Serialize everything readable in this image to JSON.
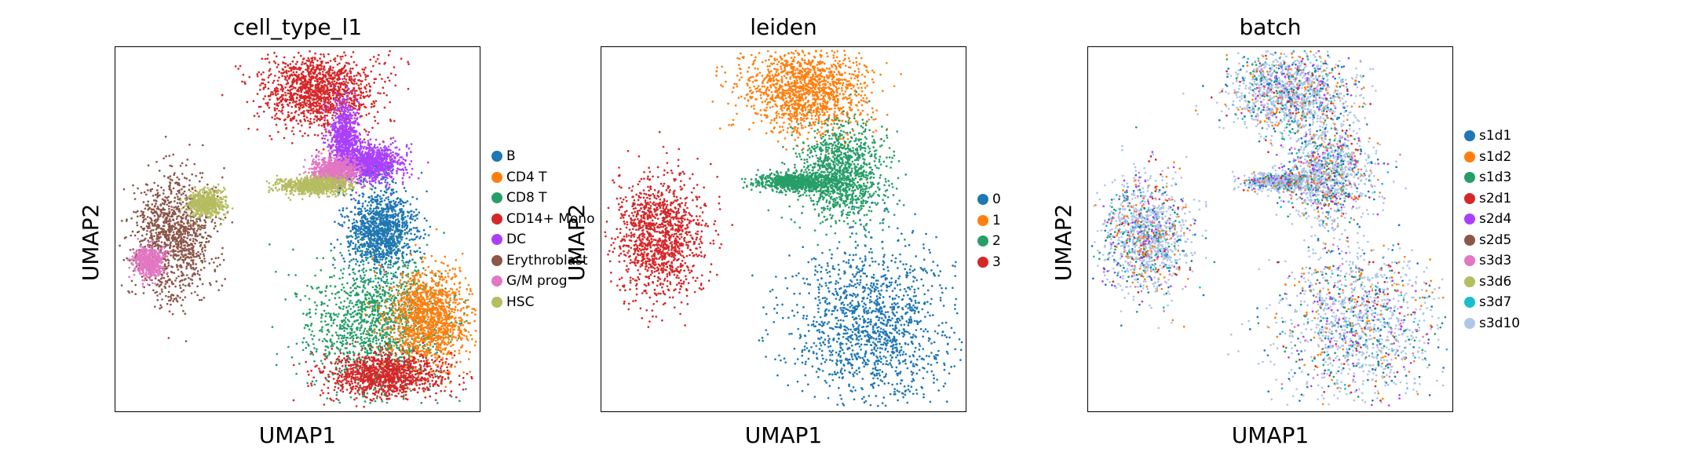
{
  "chart_data": [
    {
      "type": "scatter",
      "title": "cell_type_l1",
      "xlabel": "UMAP1",
      "ylabel": "UMAP2",
      "xticks": [],
      "yticks": [],
      "grid": false,
      "legend_placement": "right",
      "legend": [
        {
          "name": "B",
          "color": "#1f77b4"
        },
        {
          "name": "CD4 T",
          "color": "#ff7f0e"
        },
        {
          "name": "CD8 T",
          "color": "#279e68"
        },
        {
          "name": "CD14+ Mono",
          "color": "#d62728"
        },
        {
          "name": "DC",
          "color": "#aa40fc"
        },
        {
          "name": "Erythroblast",
          "color": "#8c564b"
        },
        {
          "name": "G/M prog",
          "color": "#e377c2"
        },
        {
          "name": "HSC",
          "color": "#b5bd61"
        }
      ],
      "clusters": [
        {
          "category": "CD14+ Mono",
          "center": [
            0.56,
            0.88
          ],
          "spread": [
            0.08,
            0.055
          ],
          "density": 1.0
        },
        {
          "category": "DC",
          "center": [
            0.7,
            0.68
          ],
          "spread": [
            0.045,
            0.025
          ],
          "density": 0.75
        },
        {
          "category": "DC",
          "center": [
            0.63,
            0.75
          ],
          "spread": [
            0.02,
            0.05
          ],
          "density": 0.5
        },
        {
          "category": "G/M prog",
          "center": [
            0.6,
            0.66
          ],
          "spread": [
            0.03,
            0.018
          ],
          "density": 0.55
        },
        {
          "category": "HSC",
          "center": [
            0.55,
            0.62
          ],
          "spread": [
            0.05,
            0.012
          ],
          "density": 0.55
        },
        {
          "category": "B",
          "center": [
            0.73,
            0.5
          ],
          "spread": [
            0.045,
            0.055
          ],
          "density": 0.85
        },
        {
          "category": "CD8 T",
          "center": [
            0.72,
            0.24
          ],
          "spread": [
            0.095,
            0.095
          ],
          "density": 1.0
        },
        {
          "category": "CD4 T",
          "center": [
            0.86,
            0.26
          ],
          "spread": [
            0.055,
            0.065
          ],
          "density": 0.95
        },
        {
          "category": "CD14+ Mono",
          "center": [
            0.74,
            0.1
          ],
          "spread": [
            0.08,
            0.03
          ],
          "density": 0.8
        },
        {
          "category": "Erythroblast",
          "center": [
            0.16,
            0.48
          ],
          "spread": [
            0.055,
            0.08
          ],
          "density": 0.85
        },
        {
          "category": "G/M prog",
          "center": [
            0.09,
            0.41
          ],
          "spread": [
            0.02,
            0.02
          ],
          "density": 0.4
        },
        {
          "category": "HSC",
          "center": [
            0.25,
            0.57
          ],
          "spread": [
            0.025,
            0.018
          ],
          "density": 0.4
        }
      ]
    },
    {
      "type": "scatter",
      "title": "leiden",
      "xlabel": "UMAP1",
      "ylabel": "UMAP2",
      "xticks": [],
      "yticks": [],
      "grid": false,
      "legend_placement": "right",
      "legend": [
        {
          "name": "0",
          "color": "#1f77b4"
        },
        {
          "name": "1",
          "color": "#ff7f0e"
        },
        {
          "name": "2",
          "color": "#279e68"
        },
        {
          "name": "3",
          "color": "#d62728"
        }
      ],
      "clusters": [
        {
          "category": "1",
          "center": [
            0.56,
            0.88
          ],
          "spread": [
            0.085,
            0.06
          ],
          "density": 1.0
        },
        {
          "category": "2",
          "center": [
            0.66,
            0.65
          ],
          "spread": [
            0.06,
            0.07
          ],
          "density": 0.85
        },
        {
          "category": "2",
          "center": [
            0.53,
            0.63
          ],
          "spread": [
            0.05,
            0.012
          ],
          "density": 0.55
        },
        {
          "category": "0",
          "center": [
            0.74,
            0.24
          ],
          "spread": [
            0.11,
            0.11
          ],
          "density": 1.0
        },
        {
          "category": "3",
          "center": [
            0.16,
            0.48
          ],
          "spread": [
            0.06,
            0.08
          ],
          "density": 0.9
        }
      ]
    },
    {
      "type": "scatter",
      "title": "batch",
      "xlabel": "UMAP1",
      "ylabel": "UMAP2",
      "xticks": [],
      "yticks": [],
      "grid": false,
      "legend_placement": "right",
      "legend": [
        {
          "name": "s1d1",
          "color": "#1f77b4"
        },
        {
          "name": "s1d2",
          "color": "#ff7f0e"
        },
        {
          "name": "s1d3",
          "color": "#279e68"
        },
        {
          "name": "s2d1",
          "color": "#d62728"
        },
        {
          "name": "s2d4",
          "color": "#aa40fc"
        },
        {
          "name": "s2d5",
          "color": "#8c564b"
        },
        {
          "name": "s3d3",
          "color": "#e377c2"
        },
        {
          "name": "s3d6",
          "color": "#b5bd61"
        },
        {
          "name": "s3d7",
          "color": "#17becf"
        },
        {
          "name": "s3d10",
          "color": "#aec7e8"
        }
      ],
      "clusters": [
        {
          "category": "mixed",
          "center": [
            0.56,
            0.88
          ],
          "spread": [
            0.085,
            0.06
          ],
          "density": 1.0
        },
        {
          "category": "mixed",
          "center": [
            0.66,
            0.65
          ],
          "spread": [
            0.06,
            0.07
          ],
          "density": 0.8
        },
        {
          "category": "mixed",
          "center": [
            0.53,
            0.63
          ],
          "spread": [
            0.05,
            0.012
          ],
          "density": 0.4
        },
        {
          "category": "mixed",
          "center": [
            0.74,
            0.24
          ],
          "spread": [
            0.11,
            0.11
          ],
          "density": 1.0
        },
        {
          "category": "mixed",
          "center": [
            0.16,
            0.48
          ],
          "spread": [
            0.06,
            0.08
          ],
          "density": 0.9
        }
      ]
    }
  ]
}
